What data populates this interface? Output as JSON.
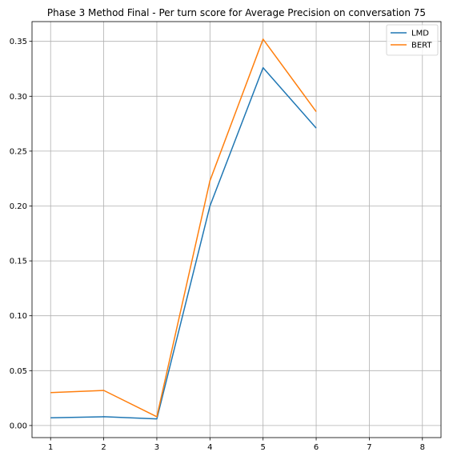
{
  "chart_data": {
    "type": "line",
    "title": "Phase 3 Method Final - Per turn score for Average Precision on conversation 75",
    "xlabel": "",
    "ylabel": "",
    "x_ticks": [
      "1",
      "2",
      "3",
      "4",
      "5",
      "6",
      "7",
      "8"
    ],
    "y_ticks": [
      "0.00",
      "0.05",
      "0.10",
      "0.15",
      "0.20",
      "0.25",
      "0.30",
      "0.35"
    ],
    "xlim": [
      0.65,
      8.35
    ],
    "ylim": [
      -0.011,
      0.368
    ],
    "grid": true,
    "legend_placement": "top-right",
    "series": [
      {
        "name": "LMD",
        "color": "#1f77b4",
        "x": [
          1,
          2,
          3,
          4,
          5,
          6
        ],
        "y": [
          0.007,
          0.008,
          0.006,
          0.2,
          0.326,
          0.271
        ]
      },
      {
        "name": "BERT",
        "color": "#ff7f0e",
        "x": [
          1,
          2,
          3,
          4,
          5,
          6
        ],
        "y": [
          0.03,
          0.032,
          0.008,
          0.223,
          0.352,
          0.286
        ]
      }
    ]
  }
}
